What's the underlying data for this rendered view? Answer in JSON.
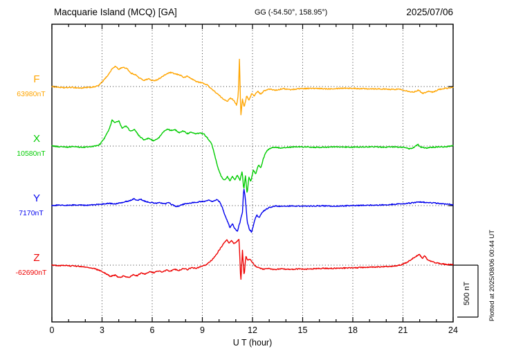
{
  "header": {
    "station_title": "Macquarie Island (MCQ)  [GA]",
    "coords": "GG (-54.50°, 158.95°)",
    "date": "2025/07/06"
  },
  "axes": {
    "x_label": "U T (hour)",
    "x_ticks": [
      0,
      3,
      6,
      9,
      12,
      15,
      18,
      21,
      24
    ],
    "x_range": [
      0,
      24
    ]
  },
  "scale_bar": {
    "label": "500 nT",
    "nT": 500
  },
  "side_note": "Plotted at 2025/08/06 00:44 UT",
  "chart_data": {
    "type": "line",
    "title": "Macquarie Island (MCQ) [GA] magnetogram 2025/07/06",
    "xlabel": "U T (hour)",
    "x_range": [
      0,
      24
    ],
    "x_ticks": [
      0,
      3,
      6,
      9,
      12,
      15,
      18,
      21,
      24
    ],
    "grid": "dotted vertical at 3h intervals, dotted horizontal baselines",
    "scale_nT_per_division": 500,
    "values_are_offsets_nT": true,
    "series": [
      {
        "name": "F",
        "baseline_label": "63980nT",
        "baseline_value": 63980,
        "color": "#FFA500",
        "keypoints": [
          [
            0,
            0
          ],
          [
            0.3,
            -5
          ],
          [
            0.7,
            -12
          ],
          [
            1.2,
            -8
          ],
          [
            1.7,
            -15
          ],
          [
            2.1,
            -10
          ],
          [
            2.5,
            -5
          ],
          [
            2.8,
            10
          ],
          [
            3.1,
            60
          ],
          [
            3.4,
            120
          ],
          [
            3.6,
            170
          ],
          [
            3.8,
            195
          ],
          [
            4.0,
            165
          ],
          [
            4.2,
            185
          ],
          [
            4.5,
            175
          ],
          [
            4.7,
            130
          ],
          [
            5.0,
            115
          ],
          [
            5.2,
            85
          ],
          [
            5.5,
            60
          ],
          [
            5.8,
            75
          ],
          [
            6.0,
            55
          ],
          [
            6.3,
            65
          ],
          [
            6.6,
            95
          ],
          [
            6.9,
            125
          ],
          [
            7.1,
            135
          ],
          [
            7.4,
            120
          ],
          [
            7.7,
            110
          ],
          [
            7.9,
            85
          ],
          [
            8.1,
            100
          ],
          [
            8.4,
            70
          ],
          [
            8.7,
            45
          ],
          [
            9.0,
            35
          ],
          [
            9.3,
            15
          ],
          [
            9.6,
            -30
          ],
          [
            9.9,
            -70
          ],
          [
            10.2,
            -115
          ],
          [
            10.5,
            -140
          ],
          [
            10.7,
            -110
          ],
          [
            10.9,
            -135
          ],
          [
            11.05,
            -180
          ],
          [
            11.15,
            -80
          ],
          [
            11.22,
            260
          ],
          [
            11.3,
            -290
          ],
          [
            11.4,
            -120
          ],
          [
            11.5,
            -200
          ],
          [
            11.65,
            -90
          ],
          [
            11.8,
            -130
          ],
          [
            11.95,
            -70
          ],
          [
            12.1,
            -90
          ],
          [
            12.3,
            -45
          ],
          [
            12.5,
            -75
          ],
          [
            12.7,
            -40
          ],
          [
            13.0,
            -25
          ],
          [
            13.4,
            -35
          ],
          [
            13.8,
            -20
          ],
          [
            14.3,
            -30
          ],
          [
            14.8,
            -20
          ],
          [
            15.5,
            -18
          ],
          [
            16.5,
            -22
          ],
          [
            17.5,
            -15
          ],
          [
            18.5,
            -20
          ],
          [
            19.5,
            -22
          ],
          [
            20.3,
            -28
          ],
          [
            20.8,
            -25
          ],
          [
            21.2,
            -40
          ],
          [
            21.6,
            -55
          ],
          [
            21.9,
            -35
          ],
          [
            22.2,
            -65
          ],
          [
            22.5,
            -45
          ],
          [
            22.8,
            -55
          ],
          [
            23.1,
            -30
          ],
          [
            23.5,
            -18
          ],
          [
            24,
            -10
          ]
        ]
      },
      {
        "name": "X",
        "baseline_label": "10580nT",
        "baseline_value": 10580,
        "color": "#00CC00",
        "keypoints": [
          [
            0,
            0
          ],
          [
            0.4,
            -6
          ],
          [
            0.8,
            -10
          ],
          [
            1.3,
            -6
          ],
          [
            1.8,
            -12
          ],
          [
            2.2,
            -8
          ],
          [
            2.6,
            0
          ],
          [
            2.9,
            20
          ],
          [
            3.2,
            90
          ],
          [
            3.45,
            170
          ],
          [
            3.6,
            250
          ],
          [
            3.8,
            225
          ],
          [
            4.0,
            245
          ],
          [
            4.2,
            170
          ],
          [
            4.45,
            195
          ],
          [
            4.7,
            140
          ],
          [
            4.95,
            160
          ],
          [
            5.2,
            100
          ],
          [
            5.5,
            60
          ],
          [
            5.8,
            75
          ],
          [
            6.1,
            50
          ],
          [
            6.4,
            80
          ],
          [
            6.7,
            140
          ],
          [
            6.9,
            165
          ],
          [
            7.1,
            150
          ],
          [
            7.35,
            160
          ],
          [
            7.6,
            130
          ],
          [
            7.85,
            145
          ],
          [
            8.1,
            120
          ],
          [
            8.35,
            135
          ],
          [
            8.6,
            115
          ],
          [
            8.85,
            130
          ],
          [
            9.1,
            115
          ],
          [
            9.35,
            70
          ],
          [
            9.55,
            25
          ],
          [
            9.7,
            -60
          ],
          [
            9.85,
            -160
          ],
          [
            10.0,
            -240
          ],
          [
            10.15,
            -300
          ],
          [
            10.3,
            -330
          ],
          [
            10.5,
            -295
          ],
          [
            10.65,
            -335
          ],
          [
            10.8,
            -290
          ],
          [
            10.95,
            -325
          ],
          [
            11.1,
            -280
          ],
          [
            11.25,
            -330
          ],
          [
            11.38,
            -240
          ],
          [
            11.48,
            -420
          ],
          [
            11.58,
            -290
          ],
          [
            11.68,
            -460
          ],
          [
            11.78,
            -300
          ],
          [
            11.9,
            -340
          ],
          [
            12.05,
            -230
          ],
          [
            12.2,
            -270
          ],
          [
            12.35,
            -180
          ],
          [
            12.5,
            -210
          ],
          [
            12.65,
            -120
          ],
          [
            12.8,
            -60
          ],
          [
            13.0,
            -25
          ],
          [
            13.3,
            -12
          ],
          [
            13.7,
            -18
          ],
          [
            14.2,
            -10
          ],
          [
            15,
            -8
          ],
          [
            16,
            -12
          ],
          [
            17,
            -8
          ],
          [
            18,
            -10
          ],
          [
            19,
            -7
          ],
          [
            20,
            -10
          ],
          [
            20.6,
            -8
          ],
          [
            21.0,
            -12
          ],
          [
            21.4,
            -28
          ],
          [
            21.7,
            -8
          ],
          [
            21.9,
            15
          ],
          [
            22.1,
            -12
          ],
          [
            22.4,
            -18
          ],
          [
            22.8,
            -10
          ],
          [
            23.3,
            -8
          ],
          [
            23.7,
            -4
          ],
          [
            24,
            0
          ]
        ]
      },
      {
        "name": "Y",
        "baseline_label": "7170nT",
        "baseline_value": 7170,
        "color": "#0000EE",
        "keypoints": [
          [
            0,
            2
          ],
          [
            0.5,
            6
          ],
          [
            1.0,
            2
          ],
          [
            1.5,
            8
          ],
          [
            2.0,
            4
          ],
          [
            2.5,
            8
          ],
          [
            3.0,
            14
          ],
          [
            3.4,
            22
          ],
          [
            3.8,
            18
          ],
          [
            4.2,
            30
          ],
          [
            4.6,
            45
          ],
          [
            4.9,
            65
          ],
          [
            5.1,
            50
          ],
          [
            5.3,
            62
          ],
          [
            5.6,
            40
          ],
          [
            5.9,
            30
          ],
          [
            6.2,
            22
          ],
          [
            6.5,
            28
          ],
          [
            6.8,
            18
          ],
          [
            7.0,
            28
          ],
          [
            7.2,
            8
          ],
          [
            7.45,
            -12
          ],
          [
            7.7,
            6
          ],
          [
            7.95,
            18
          ],
          [
            8.2,
            24
          ],
          [
            8.5,
            30
          ],
          [
            8.8,
            36
          ],
          [
            9.1,
            42
          ],
          [
            9.35,
            52
          ],
          [
            9.6,
            38
          ],
          [
            9.85,
            58
          ],
          [
            10.05,
            35
          ],
          [
            10.2,
            -20
          ],
          [
            10.35,
            -90
          ],
          [
            10.5,
            -150
          ],
          [
            10.65,
            -210
          ],
          [
            10.8,
            -175
          ],
          [
            10.95,
            -225
          ],
          [
            11.1,
            -245
          ],
          [
            11.25,
            -160
          ],
          [
            11.4,
            -60
          ],
          [
            11.48,
            170
          ],
          [
            11.56,
            90
          ],
          [
            11.68,
            -150
          ],
          [
            11.82,
            -230
          ],
          [
            11.95,
            -255
          ],
          [
            12.1,
            -160
          ],
          [
            12.25,
            -90
          ],
          [
            12.4,
            -115
          ],
          [
            12.6,
            -60
          ],
          [
            12.8,
            -35
          ],
          [
            13.0,
            -18
          ],
          [
            13.4,
            -4
          ],
          [
            13.9,
            -8
          ],
          [
            14.4,
            -2
          ],
          [
            15,
            -6
          ],
          [
            16,
            -2
          ],
          [
            17,
            -5
          ],
          [
            18,
            0
          ],
          [
            19,
            4
          ],
          [
            20,
            8
          ],
          [
            20.6,
            14
          ],
          [
            21.1,
            20
          ],
          [
            21.6,
            28
          ],
          [
            22.0,
            34
          ],
          [
            22.4,
            30
          ],
          [
            22.8,
            26
          ],
          [
            23.2,
            20
          ],
          [
            23.6,
            14
          ],
          [
            24,
            10
          ]
        ]
      },
      {
        "name": "Z",
        "baseline_label": "-62690nT",
        "baseline_value": -62690,
        "color": "#EE0000",
        "keypoints": [
          [
            0,
            0
          ],
          [
            0.4,
            -6
          ],
          [
            0.8,
            -2
          ],
          [
            1.2,
            -8
          ],
          [
            1.7,
            -12
          ],
          [
            2.1,
            -18
          ],
          [
            2.5,
            -30
          ],
          [
            2.9,
            -55
          ],
          [
            3.2,
            -80
          ],
          [
            3.5,
            -108
          ],
          [
            3.8,
            -95
          ],
          [
            4.0,
            -120
          ],
          [
            4.3,
            -105
          ],
          [
            4.6,
            -118
          ],
          [
            4.85,
            -92
          ],
          [
            5.1,
            -102
          ],
          [
            5.35,
            -75
          ],
          [
            5.6,
            -85
          ],
          [
            5.85,
            -62
          ],
          [
            6.1,
            -72
          ],
          [
            6.35,
            -55
          ],
          [
            6.6,
            -65
          ],
          [
            6.85,
            -48
          ],
          [
            7.1,
            -58
          ],
          [
            7.35,
            -40
          ],
          [
            7.6,
            -50
          ],
          [
            7.85,
            -32
          ],
          [
            8.1,
            -42
          ],
          [
            8.35,
            -24
          ],
          [
            8.6,
            -30
          ],
          [
            8.85,
            -18
          ],
          [
            9.1,
            -6
          ],
          [
            9.35,
            18
          ],
          [
            9.6,
            55
          ],
          [
            9.85,
            105
          ],
          [
            10.05,
            155
          ],
          [
            10.25,
            205
          ],
          [
            10.45,
            245
          ],
          [
            10.6,
            215
          ],
          [
            10.75,
            238
          ],
          [
            10.9,
            205
          ],
          [
            11.05,
            228
          ],
          [
            11.2,
            250
          ],
          [
            11.3,
            -170
          ],
          [
            11.4,
            140
          ],
          [
            11.5,
            -110
          ],
          [
            11.6,
            90
          ],
          [
            11.72,
            45
          ],
          [
            11.85,
            60
          ],
          [
            12.0,
            25
          ],
          [
            12.15,
            -5
          ],
          [
            12.3,
            -22
          ],
          [
            12.5,
            -32
          ],
          [
            12.7,
            -40
          ],
          [
            12.95,
            -34
          ],
          [
            13.3,
            -42
          ],
          [
            13.7,
            -36
          ],
          [
            14.2,
            -42
          ],
          [
            14.7,
            -36
          ],
          [
            15.3,
            -38
          ],
          [
            16,
            -32
          ],
          [
            17,
            -30
          ],
          [
            18,
            -26
          ],
          [
            19,
            -20
          ],
          [
            20,
            -14
          ],
          [
            20.5,
            -8
          ],
          [
            20.9,
            2
          ],
          [
            21.2,
            25
          ],
          [
            21.5,
            55
          ],
          [
            21.8,
            88
          ],
          [
            22.0,
            102
          ],
          [
            22.15,
            65
          ],
          [
            22.3,
            92
          ],
          [
            22.45,
            55
          ],
          [
            22.65,
            38
          ],
          [
            22.9,
            25
          ],
          [
            23.2,
            16
          ],
          [
            23.6,
            8
          ],
          [
            24,
            4
          ]
        ]
      }
    ]
  }
}
